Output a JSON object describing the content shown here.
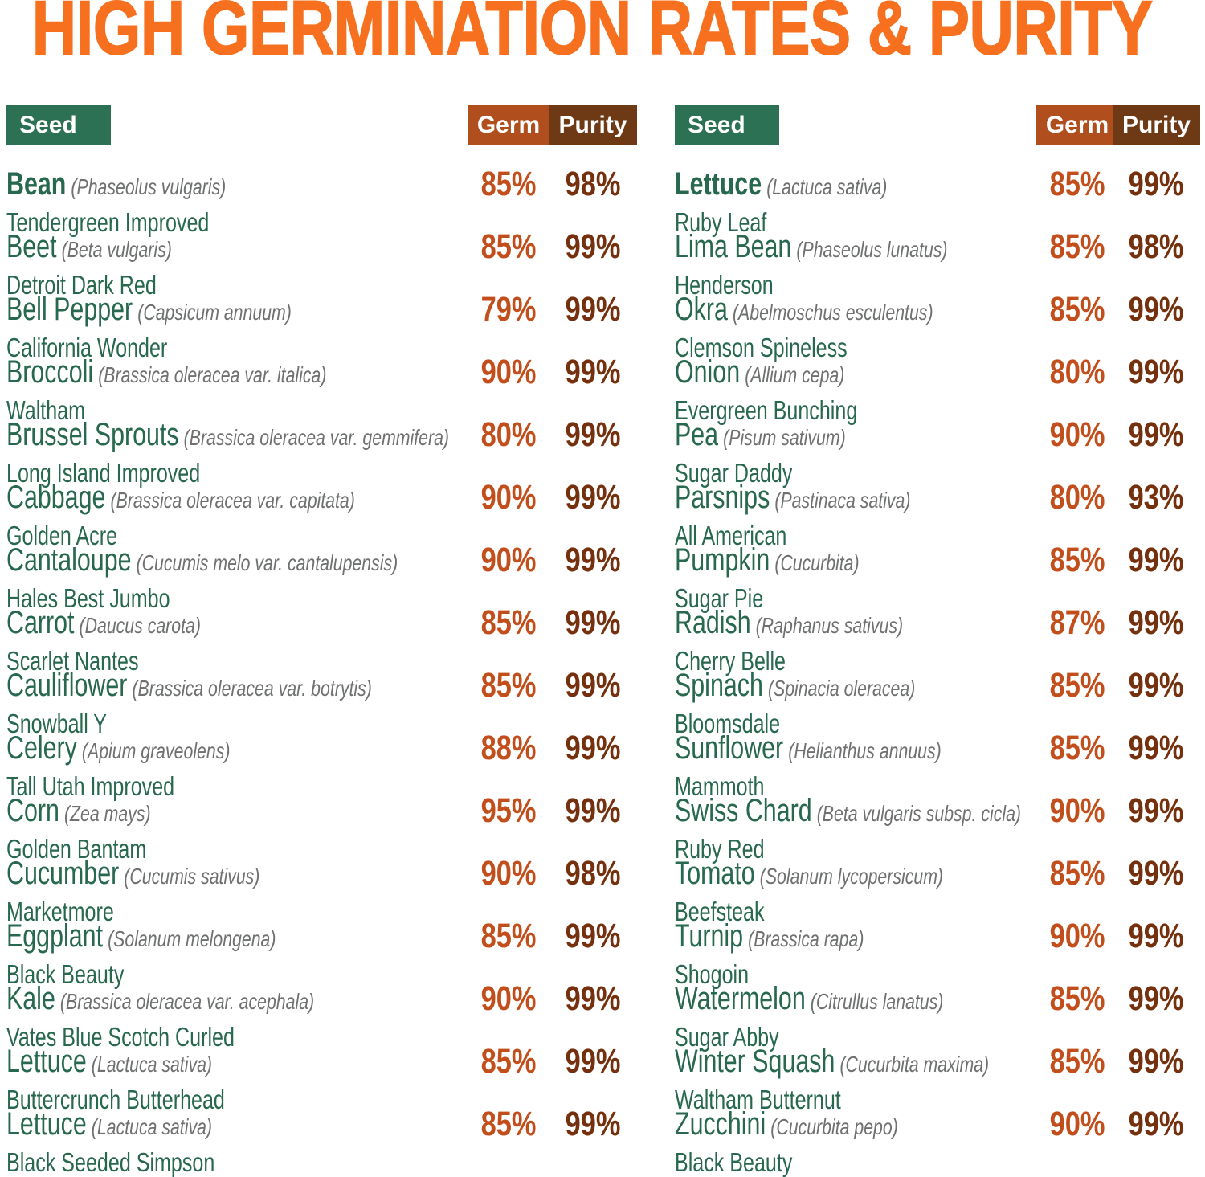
{
  "title": "HIGH GERMINATION RATES & PURITY",
  "headers": {
    "seed": "Seed",
    "germ": "Germ",
    "purity": "Purity"
  },
  "colors": {
    "title": "#f7701f",
    "seed_badge": "#2d7154",
    "germ_badge": "#b04e1e",
    "purity_badge": "#6e3a15",
    "name_text": "#27684e",
    "sci_text": "#6e716f",
    "germ_value": "#c24e1b",
    "purity_value": "#75300e",
    "badge_text": "#ffffff",
    "background": "#ffffff"
  },
  "columns": {
    "left": [
      {
        "name": "Bean",
        "sci": "(Phaseolus vulgaris)",
        "variety": "Tendergreen Improved",
        "germ": "85%",
        "purity": "98%",
        "bold": true
      },
      {
        "name": "Beet",
        "sci": "(Beta vulgaris)",
        "variety": "Detroit Dark Red",
        "germ": "85%",
        "purity": "99%"
      },
      {
        "name": "Bell Pepper",
        "sci": "(Capsicum annuum)",
        "variety": "California Wonder",
        "germ": "79%",
        "purity": "99%"
      },
      {
        "name": "Broccoli",
        "sci": "(Brassica oleracea var. italica)",
        "variety": "Waltham",
        "germ": "90%",
        "purity": "99%"
      },
      {
        "name": "Brussel Sprouts",
        "sci": "(Brassica oleracea var. gemmifera)",
        "variety": "Long Island Improved",
        "germ": "80%",
        "purity": "99%"
      },
      {
        "name": "Cabbage",
        "sci": "(Brassica oleracea var. capitata)",
        "variety": "Golden Acre",
        "germ": "90%",
        "purity": "99%"
      },
      {
        "name": "Cantaloupe",
        "sci": "(Cucumis melo var. cantalupensis)",
        "variety": "Hales Best Jumbo",
        "germ": "90%",
        "purity": "99%"
      },
      {
        "name": "Carrot",
        "sci": "(Daucus carota)",
        "variety": "Scarlet Nantes",
        "germ": "85%",
        "purity": "99%"
      },
      {
        "name": "Cauliflower",
        "sci": "(Brassica oleracea var. botrytis)",
        "variety": "Snowball Y",
        "germ": "85%",
        "purity": "99%"
      },
      {
        "name": "Celery",
        "sci": "(Apium graveolens)",
        "variety": "Tall Utah Improved",
        "germ": "88%",
        "purity": "99%"
      },
      {
        "name": "Corn",
        "sci": "(Zea mays)",
        "variety": "Golden Bantam",
        "germ": "95%",
        "purity": "99%"
      },
      {
        "name": "Cucumber",
        "sci": "(Cucumis sativus)",
        "variety": "Marketmore",
        "germ": "90%",
        "purity": "98%"
      },
      {
        "name": "Eggplant",
        "sci": "(Solanum melongena)",
        "variety": "Black Beauty",
        "germ": "85%",
        "purity": "99%"
      },
      {
        "name": "Kale",
        "sci": "(Brassica oleracea var. acephala)",
        "variety": "Vates Blue Scotch Curled",
        "germ": "90%",
        "purity": "99%"
      },
      {
        "name": "Lettuce",
        "sci": "(Lactuca sativa)",
        "variety": "Buttercrunch Butterhead",
        "germ": "85%",
        "purity": "99%"
      },
      {
        "name": "Lettuce",
        "sci": "(Lactuca sativa)",
        "variety": "Black Seeded Simpson",
        "germ": "85%",
        "purity": "99%"
      }
    ],
    "right": [
      {
        "name": "Lettuce",
        "sci": "(Lactuca sativa)",
        "variety": "Ruby Leaf",
        "germ": "85%",
        "purity": "99%",
        "bold": true
      },
      {
        "name": "Lima Bean",
        "sci": "(Phaseolus lunatus)",
        "variety": "Henderson",
        "germ": "85%",
        "purity": "98%"
      },
      {
        "name": "Okra",
        "sci": "(Abelmoschus esculentus)",
        "variety": "Clemson Spineless",
        "germ": "85%",
        "purity": "99%"
      },
      {
        "name": "Onion",
        "sci": "(Allium cepa)",
        "variety": "Evergreen Bunching",
        "germ": "80%",
        "purity": "99%"
      },
      {
        "name": "Pea",
        "sci": "(Pisum sativum)",
        "variety": "Sugar Daddy",
        "germ": "90%",
        "purity": "99%"
      },
      {
        "name": "Parsnips",
        "sci": "(Pastinaca sativa)",
        "variety": "All American",
        "germ": "80%",
        "purity": "93%"
      },
      {
        "name": "Pumpkin",
        "sci": "(Cucurbita)",
        "variety": "Sugar Pie",
        "germ": "85%",
        "purity": "99%"
      },
      {
        "name": "Radish",
        "sci": "(Raphanus sativus)",
        "variety": "Cherry Belle",
        "germ": "87%",
        "purity": "99%"
      },
      {
        "name": "Spinach",
        "sci": "(Spinacia oleracea)",
        "variety": "Bloomsdale",
        "germ": "85%",
        "purity": "99%"
      },
      {
        "name": "Sunflower",
        "sci": "(Helianthus annuus)",
        "variety": "Mammoth",
        "germ": "85%",
        "purity": "99%"
      },
      {
        "name": "Swiss Chard",
        "sci": "(Beta vulgaris subsp. cicla)",
        "variety": "Ruby Red",
        "germ": "90%",
        "purity": "99%"
      },
      {
        "name": "Tomato",
        "sci": "(Solanum lycopersicum)",
        "variety": "Beefsteak",
        "germ": "85%",
        "purity": "99%"
      },
      {
        "name": "Turnip",
        "sci": "(Brassica rapa)",
        "variety": "Shogoin",
        "germ": "90%",
        "purity": "99%"
      },
      {
        "name": "Watermelon",
        "sci": "(Citrullus lanatus)",
        "variety": "Sugar Abby",
        "germ": "85%",
        "purity": "99%"
      },
      {
        "name": "Winter Squash",
        "sci": "(Cucurbita maxima)",
        "variety": "Waltham Butternut",
        "germ": "85%",
        "purity": "99%"
      },
      {
        "name": "Zucchini",
        "sci": "(Cucurbita pepo)",
        "variety": "Black Beauty",
        "germ": "90%",
        "purity": "99%"
      }
    ]
  }
}
